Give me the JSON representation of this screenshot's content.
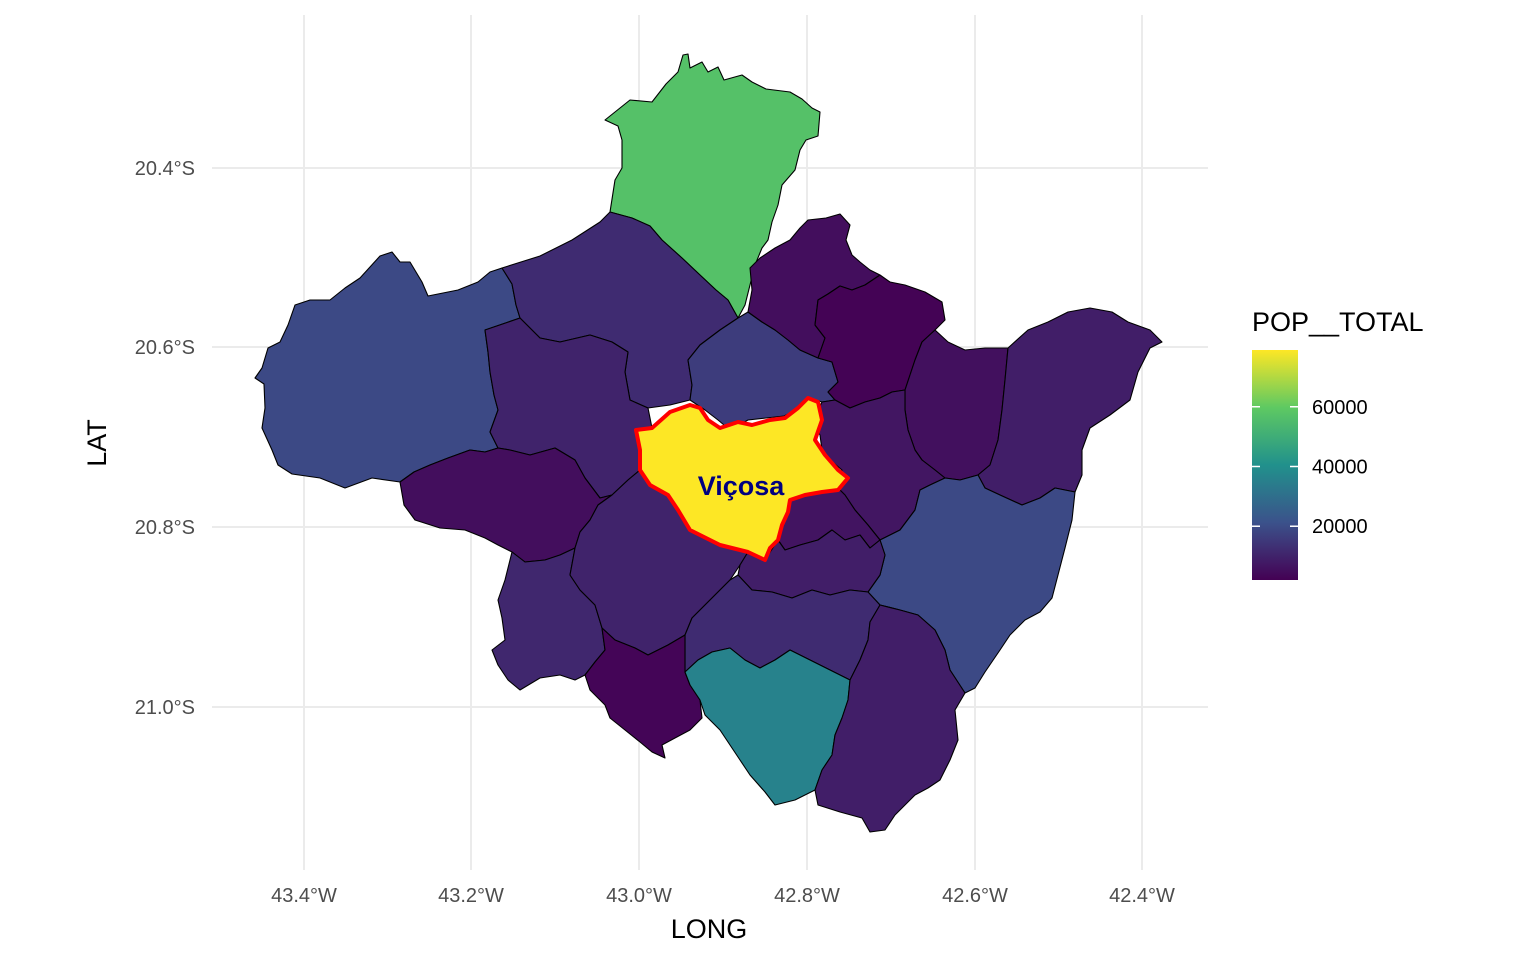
{
  "chart_data": {
    "type": "choropleth-map",
    "xlabel": "LONG",
    "ylabel": "LAT",
    "x_ticks": [
      "43.4°W",
      "43.2°W",
      "43.0°W",
      "42.8°W",
      "42.6°W",
      "42.4°W"
    ],
    "y_ticks": [
      "20.4°S",
      "20.6°S",
      "20.8°S",
      "21.0°S"
    ],
    "legend": {
      "title": "POP__TOTAL",
      "labels": [
        "60000",
        "40000",
        "20000"
      ],
      "breaks": [
        60000,
        40000,
        20000
      ],
      "range": [
        2000,
        79000
      ],
      "palette": [
        "#440154",
        "#3b528b",
        "#21918c",
        "#5ec962",
        "#fde725"
      ]
    },
    "annotation": {
      "label": "Viçosa",
      "color": "#000080",
      "outline_color": "#ff0000"
    },
    "regions": [
      {
        "id": "north",
        "value": 57000
      },
      {
        "id": "west",
        "value": 19000
      },
      {
        "id": "nw",
        "value": 12000
      },
      {
        "id": "west-center",
        "value": 10000
      },
      {
        "id": "center-north",
        "value": 16000
      },
      {
        "id": "ne1",
        "value": 5000
      },
      {
        "id": "ne2",
        "value": 2500
      },
      {
        "id": "ne3",
        "value": 5500
      },
      {
        "id": "far-ne",
        "value": 9000
      },
      {
        "id": "east-center",
        "value": 7000
      },
      {
        "id": "se",
        "value": 19000
      },
      {
        "id": "sw1",
        "value": 5000
      },
      {
        "id": "sw2",
        "value": 11000
      },
      {
        "id": "south-center",
        "value": 10000
      },
      {
        "id": "small-east",
        "value": 6500
      },
      {
        "id": "south-band",
        "value": 9000
      },
      {
        "id": "south-mid",
        "value": 12000
      },
      {
        "id": "sw3",
        "value": 3000
      },
      {
        "id": "south",
        "value": 36000
      },
      {
        "id": "se-low",
        "value": 9000
      },
      {
        "id": "vicosa",
        "value": 79000
      }
    ]
  }
}
